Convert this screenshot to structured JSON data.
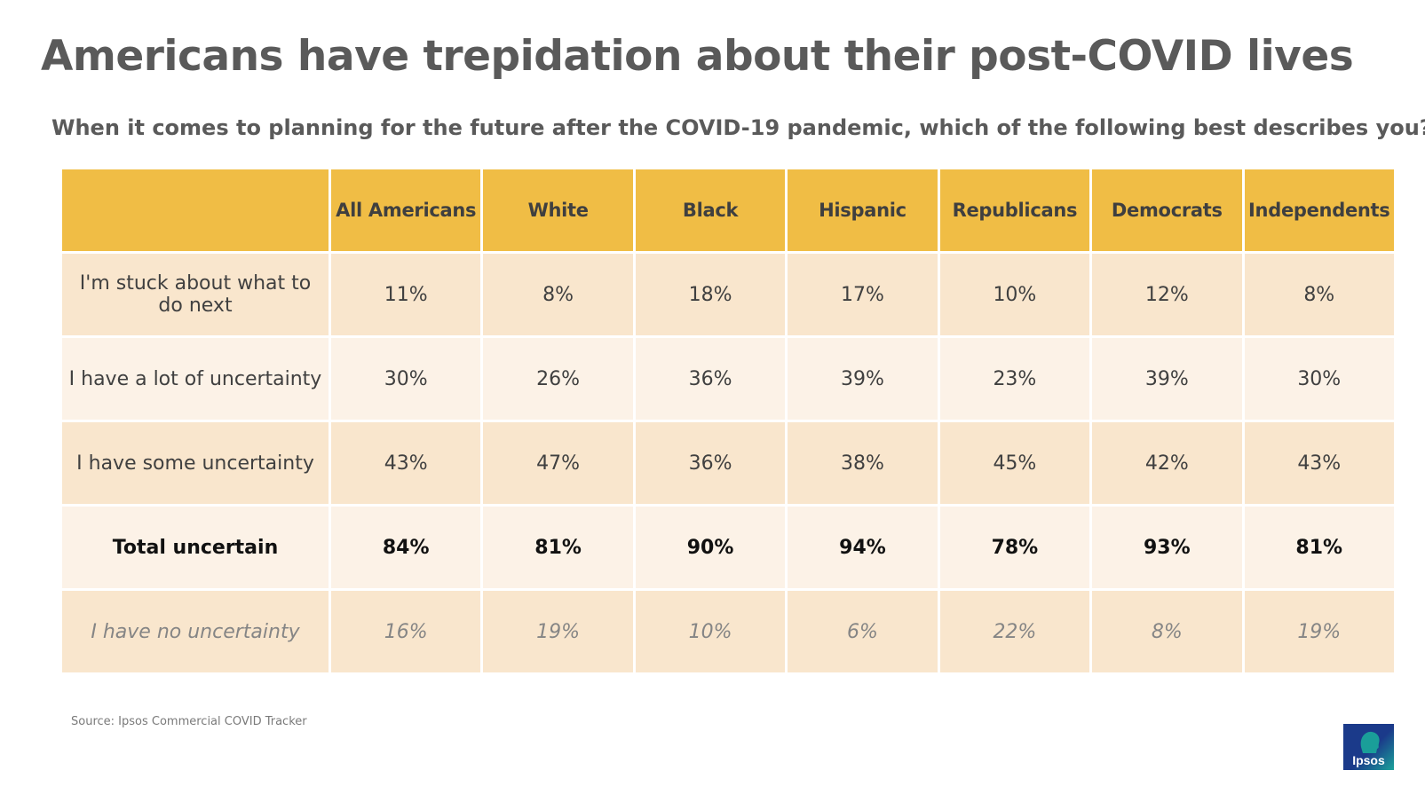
{
  "title": "Americans have trepidation about their post-COVID lives",
  "subtitle": "When it comes to planning for the future after the COVID-19 pandemic, which of the following best describes you?",
  "source": "Source: Ipsos Commercial COVID Tracker",
  "logo_text": "Ipsos",
  "colors": {
    "header_bg": "#f0bd45",
    "row_odd": "#f9e6cd",
    "row_even": "#fcf2e7",
    "logo_blue": "#1b3a8a",
    "logo_teal": "#1aa39a"
  },
  "chart_data": {
    "type": "table",
    "title": "Americans have trepidation about their post-COVID lives",
    "question": "When it comes to planning for the future after the COVID-19 pandemic, which of the following best describes you?",
    "columns": [
      "All Americans",
      "White",
      "Black",
      "Hispanic",
      "Republicans",
      "Democrats",
      "Independents"
    ],
    "rows": [
      {
        "label": "I'm stuck about what to do next",
        "values": [
          "11%",
          "8%",
          "18%",
          "17%",
          "10%",
          "12%",
          "8%"
        ],
        "style": "normal"
      },
      {
        "label": "I have a lot of uncertainty",
        "values": [
          "30%",
          "26%",
          "36%",
          "39%",
          "23%",
          "39%",
          "30%"
        ],
        "style": "normal"
      },
      {
        "label": "I have some uncertainty",
        "values": [
          "43%",
          "47%",
          "36%",
          "38%",
          "45%",
          "42%",
          "43%"
        ],
        "style": "normal"
      },
      {
        "label": "Total uncertain",
        "values": [
          "84%",
          "81%",
          "90%",
          "94%",
          "78%",
          "93%",
          "81%"
        ],
        "style": "bold"
      },
      {
        "label": "I have no uncertainty",
        "values": [
          "16%",
          "19%",
          "10%",
          "6%",
          "22%",
          "8%",
          "19%"
        ],
        "style": "italic"
      }
    ]
  }
}
